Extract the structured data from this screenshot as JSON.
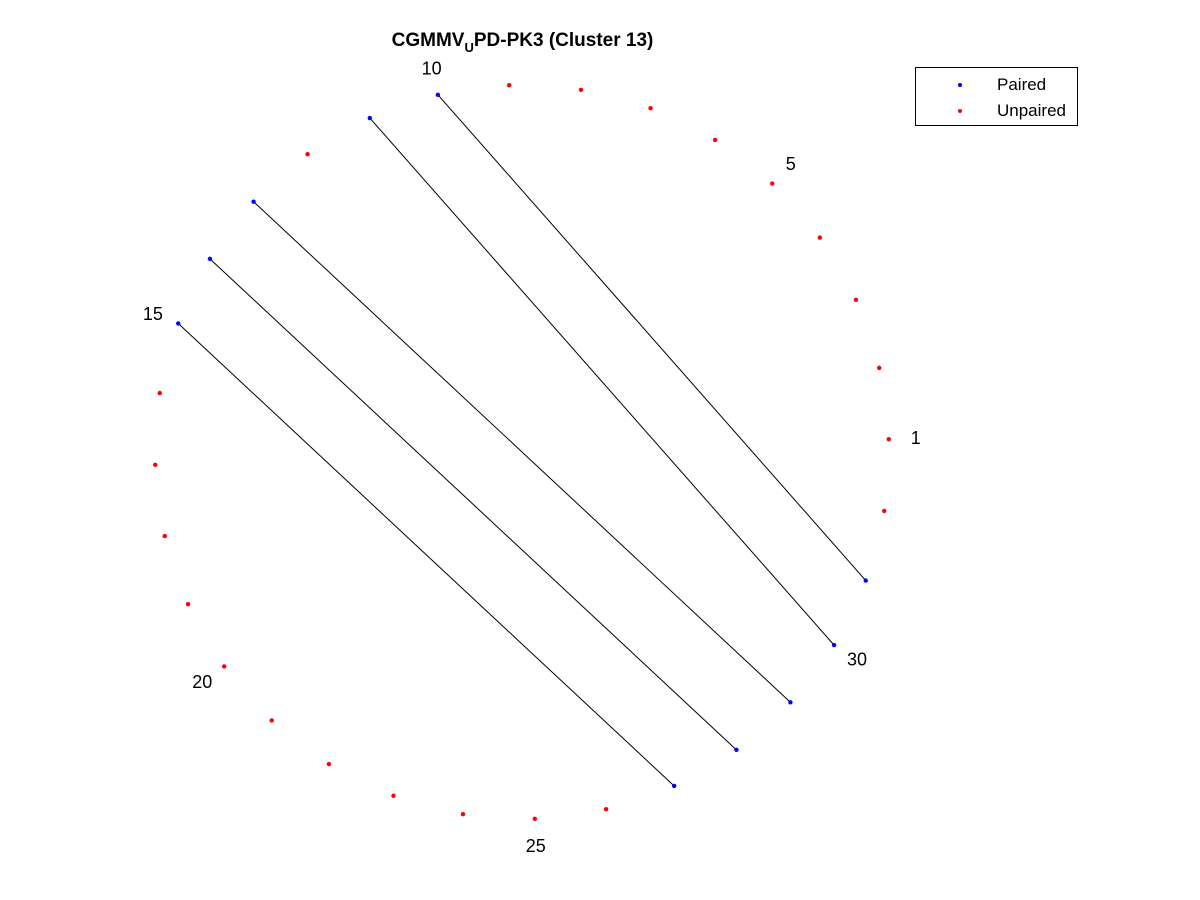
{
  "title_main": "CGMMV",
  "title_sub": "U",
  "title_rest": "PD-PK3 (Cluster 13)",
  "legend": [
    {
      "label": "Paired",
      "color": "#0000ff"
    },
    {
      "label": "Unpaired",
      "color": "#ff0000"
    }
  ],
  "colors": {
    "paired": "#0000ff",
    "unpaired": "#ff0000",
    "arc": "#000000"
  },
  "chart_data": {
    "type": "arc_diagram_circular",
    "n_nucleotides": 32,
    "tick_labels": [
      "1",
      "5",
      "10",
      "15",
      "20",
      "25",
      "30"
    ],
    "tick_positions": [
      1,
      5,
      10,
      15,
      20,
      25,
      30
    ],
    "pairs": [
      [
        10,
        31
      ],
      [
        11,
        30
      ],
      [
        13,
        29
      ],
      [
        14,
        28
      ],
      [
        15,
        27
      ]
    ],
    "paired_positions": [
      10,
      11,
      13,
      14,
      15,
      27,
      28,
      29,
      30,
      31
    ],
    "unpaired_positions": [
      1,
      2,
      3,
      4,
      5,
      6,
      7,
      8,
      9,
      12,
      16,
      17,
      18,
      19,
      20,
      21,
      22,
      23,
      24,
      25,
      26,
      32
    ]
  }
}
